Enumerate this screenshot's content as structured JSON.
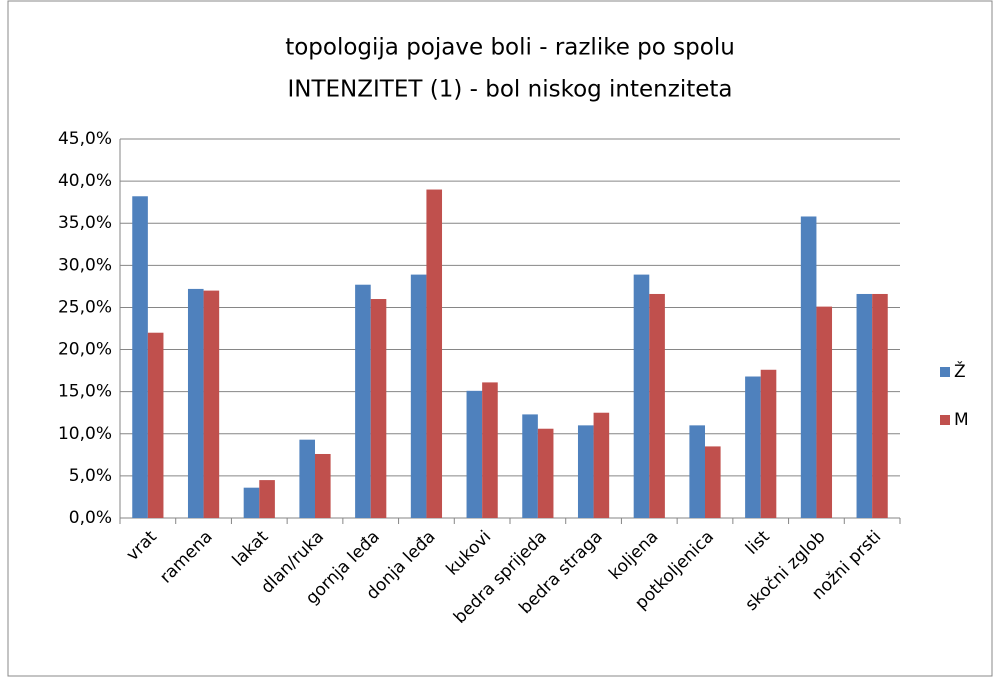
{
  "chart_data": {
    "type": "bar",
    "title": "topologija pojave boli - razlike po spolu",
    "subtitle": "INTENZITET (1) -  bol niskog intenziteta",
    "categories": [
      "vrat",
      "ramena",
      "lakat",
      "dlan/ruka",
      "gornja leđa",
      "donja leđa",
      "kukovi",
      "bedra sprijeda",
      "bedra straga",
      "koljena",
      "potkoljenica",
      "list",
      "skočni zglob",
      "nožni prsti"
    ],
    "series": [
      {
        "name": "Ž",
        "color": "#4f81bd",
        "values": [
          38.2,
          27.2,
          3.6,
          9.3,
          27.7,
          28.9,
          15.1,
          12.3,
          11.0,
          28.9,
          11.0,
          16.8,
          35.8,
          26.6
        ]
      },
      {
        "name": "M",
        "color": "#c0504d",
        "values": [
          22.0,
          27.0,
          4.5,
          7.6,
          26.0,
          39.0,
          16.1,
          10.6,
          12.5,
          26.6,
          8.5,
          17.6,
          25.1,
          26.6
        ]
      }
    ],
    "ylim": [
      0,
      45
    ],
    "yticks": [
      {
        "value": 0,
        "label": "0,0%"
      },
      {
        "value": 5,
        "label": "5,0%"
      },
      {
        "value": 10,
        "label": "10,0%"
      },
      {
        "value": 15,
        "label": "15,0%"
      },
      {
        "value": 20,
        "label": "20,0%"
      },
      {
        "value": 25,
        "label": "25,0%"
      },
      {
        "value": 30,
        "label": "30,0%"
      },
      {
        "value": 35,
        "label": "35,0%"
      },
      {
        "value": 40,
        "label": "40,0%"
      },
      {
        "value": 45,
        "label": "45,0%"
      }
    ],
    "grid": true,
    "legend": "right"
  }
}
